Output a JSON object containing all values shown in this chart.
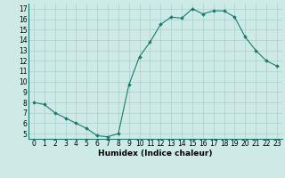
{
  "x": [
    0,
    1,
    2,
    3,
    4,
    5,
    6,
    7,
    8,
    9,
    10,
    11,
    12,
    13,
    14,
    15,
    16,
    17,
    18,
    19,
    20,
    21,
    22,
    23
  ],
  "y": [
    8.0,
    7.8,
    7.0,
    6.5,
    6.0,
    5.5,
    4.8,
    4.7,
    5.0,
    9.7,
    12.4,
    13.8,
    15.5,
    16.2,
    16.1,
    17.0,
    16.5,
    16.8,
    16.8,
    16.2,
    14.3,
    13.0,
    12.0,
    11.5
  ],
  "xlabel": "Humidex (Indice chaleur)",
  "xlim": [
    -0.5,
    23.5
  ],
  "ylim": [
    4.5,
    17.5
  ],
  "yticks": [
    5,
    6,
    7,
    8,
    9,
    10,
    11,
    12,
    13,
    14,
    15,
    16,
    17
  ],
  "xticks": [
    0,
    1,
    2,
    3,
    4,
    5,
    6,
    7,
    8,
    9,
    10,
    11,
    12,
    13,
    14,
    15,
    16,
    17,
    18,
    19,
    20,
    21,
    22,
    23
  ],
  "line_color": "#1a7a6e",
  "marker": "D",
  "marker_size": 1.8,
  "bg_color": "#ceeae7",
  "grid_color": "#aacfcc",
  "axis_fontsize": 6.5,
  "tick_fontsize": 5.5
}
